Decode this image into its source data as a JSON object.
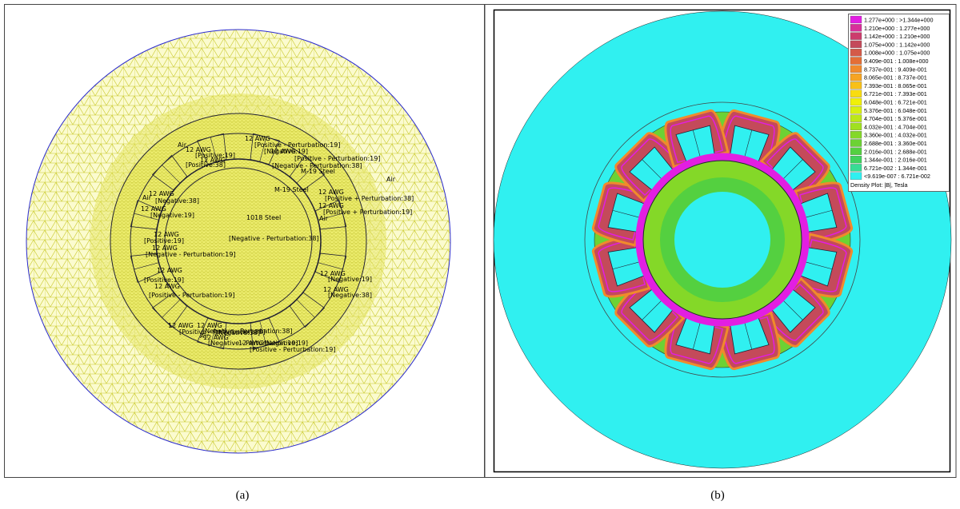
{
  "panels": [
    {
      "caption": "(a)",
      "labels": [
        "12 AWG",
        "[Positive - Perturbation:19]",
        "Air",
        "12 AWG",
        "[Positive:19]",
        "12 AWG",
        "[Positive:38]",
        "[Negative:19]",
        "12 AWG",
        "[Positive - Perturbation:19]",
        "[Negative - Perturbation:38]",
        "M-19 Steel",
        "Air",
        "M-19 Steel",
        "12 AWG",
        "[Positive + Perturbation:38]",
        "12 AWG",
        "[Positive + Perturbation:19]",
        "Air",
        "1018 Steel",
        "Air",
        "12 AWG",
        "[Negative:38]",
        "12 AWG",
        "[Negative:19]",
        "12 AWG",
        "[Positive:19]",
        "[Negative - Perturbation:38]",
        "12 AWG",
        "[Negative - Perturbation:19]",
        "12 AWG",
        "[Positive:19]",
        "12 AWG",
        "[Positive - Perturbation:19]",
        "12 AWG",
        "[Positive - Perturbation:38]",
        "12 AWG",
        "[Negative:19]",
        "12 AWG",
        "[Negative:38]",
        "12 AWG",
        "[Negative - Perturbation:38]",
        "12 AWG",
        "[Negative:38]",
        "Air",
        "[Negative - Perturbation:19]",
        "12 AWG",
        "[Positive - Perturbation:19]",
        "[Negative:19]"
      ]
    },
    {
      "caption": "(b)",
      "legend": {
        "title": "Density Plot: |B|, Tesla",
        "entries": [
          {
            "label": "1.277e+000 : >1.344e+000",
            "color": "#e21ee2"
          },
          {
            "label": "1.210e+000 : 1.277e+000",
            "color": "#d8309a"
          },
          {
            "label": "1.142e+000 : 1.210e+000",
            "color": "#cc3c6c"
          },
          {
            "label": "1.075e+000 : 1.142e+000",
            "color": "#c44a5a"
          },
          {
            "label": "1.008e+000 : 1.075e+000",
            "color": "#d45a48"
          },
          {
            "label": "9.409e-001 : 1.008e+000",
            "color": "#e46e36"
          },
          {
            "label": "8.737e-001 : 9.409e-001",
            "color": "#f08a2c"
          },
          {
            "label": "8.065e-001 : 8.737e-001",
            "color": "#f6a422"
          },
          {
            "label": "7.393e-001 : 8.065e-001",
            "color": "#f8c018"
          },
          {
            "label": "6.721e-001 : 7.393e-001",
            "color": "#f8dc10"
          },
          {
            "label": "6.048e-001 : 6.721e-001",
            "color": "#f0f008"
          },
          {
            "label": "5.376e-001 : 6.048e-001",
            "color": "#d8f010"
          },
          {
            "label": "4.704e-001 : 5.376e-001",
            "color": "#bce818"
          },
          {
            "label": "4.032e-001 : 4.704e-001",
            "color": "#a0e020"
          },
          {
            "label": "3.360e-001 : 4.032e-001",
            "color": "#84d828"
          },
          {
            "label": "2.688e-001 : 3.360e-001",
            "color": "#6cd234"
          },
          {
            "label": "2.016e-001 : 2.688e-001",
            "color": "#54d040"
          },
          {
            "label": "1.344e-001 : 2.016e-001",
            "color": "#40d25c"
          },
          {
            "label": "6.721e-002 : 1.344e-001",
            "color": "#38dc94"
          },
          {
            "label": "<9.619e-007 : 6.721e-002",
            "color": "#30f0f0"
          }
        ]
      }
    }
  ]
}
